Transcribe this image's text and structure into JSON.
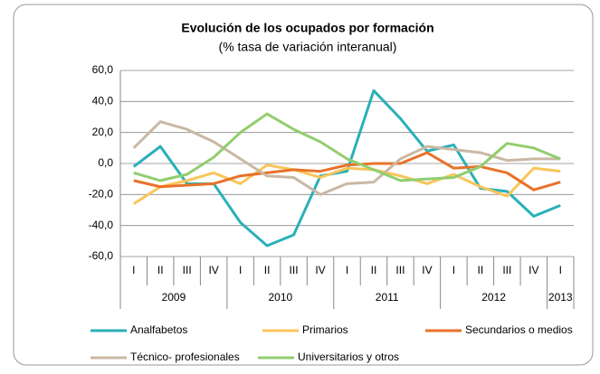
{
  "chart_data": {
    "type": "line",
    "title": "Evolución de los ocupados por formación",
    "subtitle": "(% tasa de variación interanual)",
    "categories": [
      "I",
      "II",
      "III",
      "IV",
      "I",
      "II",
      "III",
      "IV",
      "I",
      "II",
      "III",
      "IV",
      "I",
      "II",
      "III",
      "IV",
      "I"
    ],
    "year_labels": [
      "2009",
      "2010",
      "2011",
      "2012",
      "2013"
    ],
    "ylim": [
      -60,
      60
    ],
    "yticks": [
      {
        "value": 60,
        "label": "60,0"
      },
      {
        "value": 40,
        "label": "40,0"
      },
      {
        "value": 20,
        "label": "20,0"
      },
      {
        "value": 0,
        "label": "0,0"
      },
      {
        "value": -20,
        "label": "-20,0"
      },
      {
        "value": -40,
        "label": "-40,0"
      },
      {
        "value": -60,
        "label": "-60,0"
      }
    ],
    "grid": true,
    "series": [
      {
        "name": "Analfabetos",
        "color": "#2ab0b8",
        "values": [
          -2,
          11,
          -13,
          -13,
          -38,
          -53,
          -46,
          -8,
          -5,
          47,
          29,
          8,
          12,
          -16,
          -18,
          -34,
          -27
        ]
      },
      {
        "name": "Primarios",
        "color": "#f9c55a",
        "values": [
          -26,
          -15,
          -11,
          -6,
          -13,
          -1,
          -4,
          -9,
          -3,
          -4,
          -8,
          -13,
          -7,
          -15,
          -21,
          -3,
          -5
        ]
      },
      {
        "name": "Secundarios o medios",
        "color": "#e8722a",
        "values": [
          -11,
          -15,
          -14,
          -13,
          -8,
          -6,
          -4,
          -5,
          -1,
          0,
          0,
          7,
          -3,
          -2,
          -6,
          -17,
          -12
        ]
      },
      {
        "name": "Técnico- profesionales",
        "color": "#c9b8a4",
        "values": [
          10,
          27,
          22,
          14,
          3,
          -8,
          -9,
          -20,
          -13,
          -12,
          3,
          11,
          9,
          7,
          2,
          3,
          3
        ]
      },
      {
        "name": "Universitarios y otros",
        "color": "#92cd6e",
        "values": [
          -6,
          -11,
          -7,
          4,
          20,
          32,
          22,
          14,
          3,
          -4,
          -11,
          -10,
          -9,
          -2,
          13,
          10,
          3
        ]
      }
    ]
  }
}
